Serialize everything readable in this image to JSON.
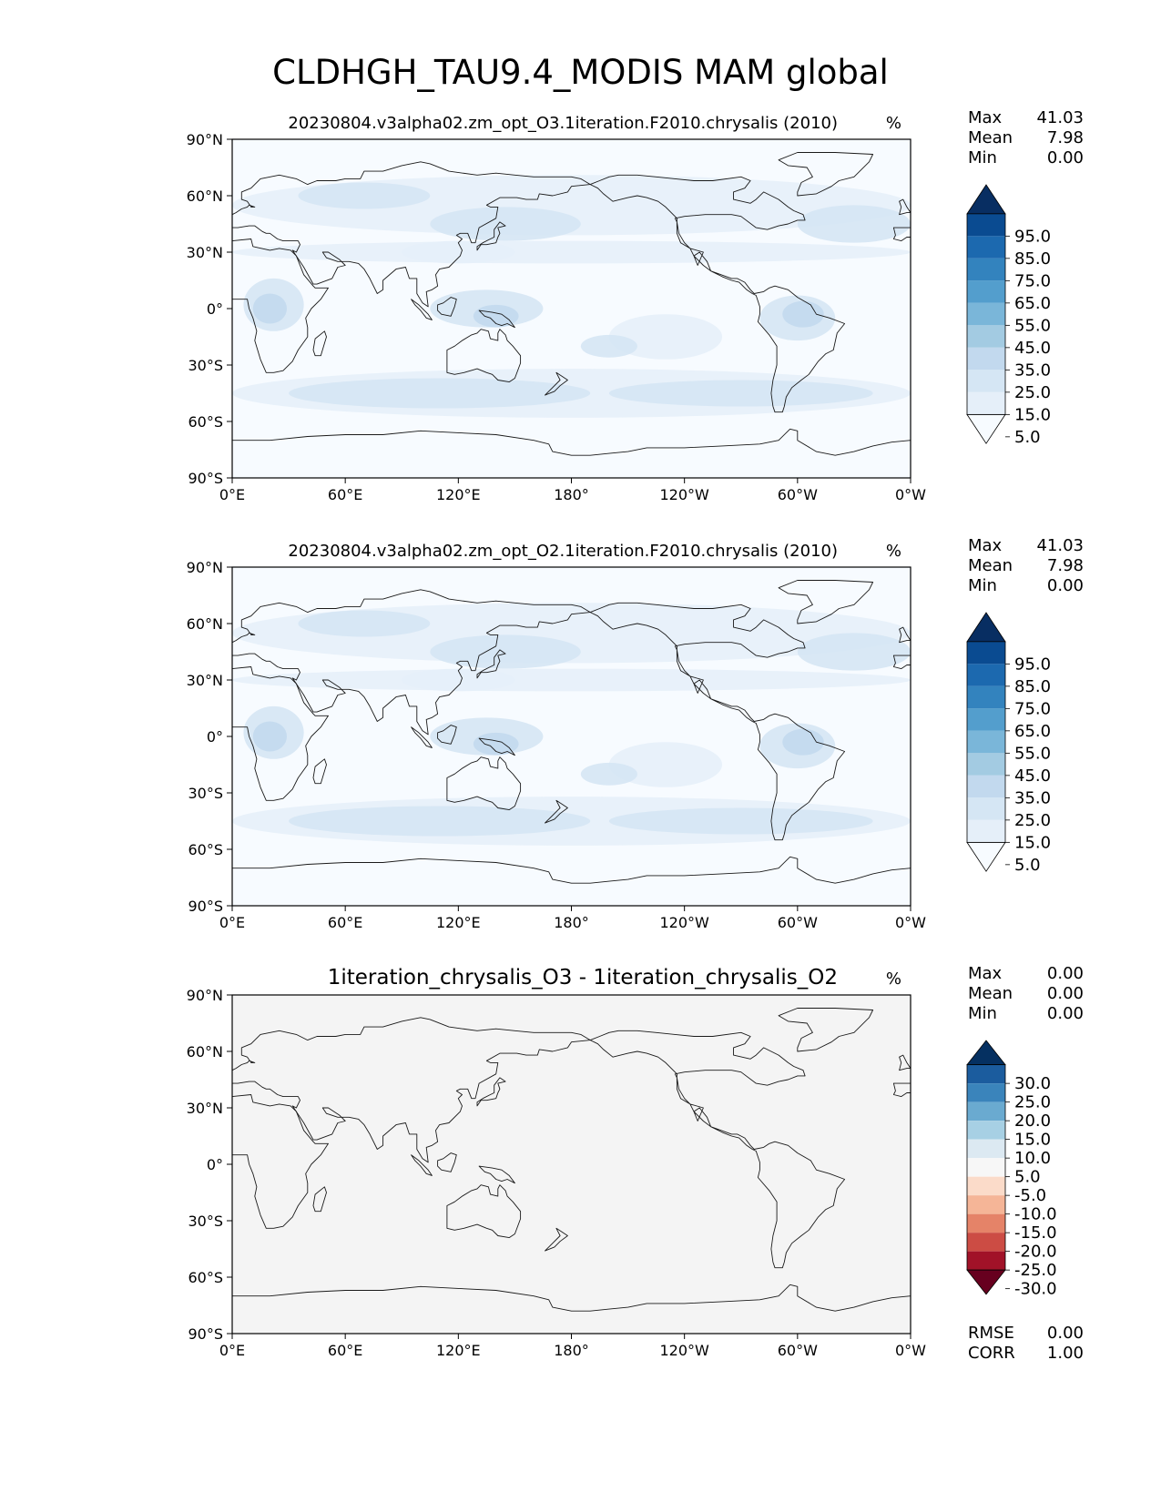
{
  "figure": {
    "title": "CLDHGH_TAU9.4_MODIS MAM global"
  },
  "colors": {
    "land_outline": "#1a1a1a",
    "diff_background": "#f4f4f4",
    "blues": [
      "#f7fbff",
      "#e5eff9",
      "#d5e6f4",
      "#c2d9ee",
      "#a3cbe2",
      "#7ab6d9",
      "#539ecd",
      "#3383be",
      "#1c69af",
      "#0a4b91",
      "#082e62"
    ],
    "rdbu": [
      "#67001f",
      "#a11228",
      "#cc4c44",
      "#e58368",
      "#f5b597",
      "#fbdbc9",
      "#f7f7f7",
      "#dce9f2",
      "#a7d0e4",
      "#6aaad0",
      "#3a84bb",
      "#1b5c9e",
      "#053061"
    ]
  },
  "chart_data": [
    {
      "type": "heatmap",
      "title": "20230804.v3alpha02.zm_opt_O3.1iteration.F2010.chrysalis (2010)",
      "units": "%",
      "stats": [
        {
          "label": "Max",
          "value": "41.03"
        },
        {
          "label": "Mean",
          "value": "7.98"
        },
        {
          "label": "Min",
          "value": "0.00"
        }
      ],
      "x_ticks": [
        "0°E",
        "60°E",
        "120°E",
        "180°",
        "120°W",
        "60°W",
        "0°W"
      ],
      "y_ticks": [
        "90°N",
        "60°N",
        "30°N",
        "0°",
        "30°S",
        "60°S",
        "90°S"
      ],
      "xlim": [
        0,
        360
      ],
      "ylim": [
        -90,
        90
      ],
      "colorbar": {
        "levels": [
          0,
          5,
          15,
          25,
          35,
          45,
          55,
          65,
          75,
          85,
          95,
          100
        ],
        "tick_labels": [
          "95.0",
          "85.0",
          "75.0",
          "65.0",
          "55.0",
          "45.0",
          "35.0",
          "25.0",
          "15.0",
          "5.0"
        ],
        "extend": "both",
        "colormap": "Blues"
      }
    },
    {
      "type": "heatmap",
      "title": "20230804.v3alpha02.zm_opt_O2.1iteration.F2010.chrysalis (2010)",
      "units": "%",
      "stats": [
        {
          "label": "Max",
          "value": "41.03"
        },
        {
          "label": "Mean",
          "value": "7.98"
        },
        {
          "label": "Min",
          "value": "0.00"
        }
      ],
      "x_ticks": [
        "0°E",
        "60°E",
        "120°E",
        "180°",
        "120°W",
        "60°W",
        "0°W"
      ],
      "y_ticks": [
        "90°N",
        "60°N",
        "30°N",
        "0°",
        "30°S",
        "60°S",
        "90°S"
      ],
      "xlim": [
        0,
        360
      ],
      "ylim": [
        -90,
        90
      ],
      "colorbar": {
        "levels": [
          0,
          5,
          15,
          25,
          35,
          45,
          55,
          65,
          75,
          85,
          95,
          100
        ],
        "tick_labels": [
          "95.0",
          "85.0",
          "75.0",
          "65.0",
          "55.0",
          "45.0",
          "35.0",
          "25.0",
          "15.0",
          "5.0"
        ],
        "extend": "both",
        "colormap": "Blues"
      }
    },
    {
      "type": "heatmap",
      "title": "1iteration_chrysalis_O3 - 1iteration_chrysalis_O2",
      "units": "%",
      "stats": [
        {
          "label": "Max",
          "value": "0.00"
        },
        {
          "label": "Mean",
          "value": "0.00"
        },
        {
          "label": "Min",
          "value": "0.00"
        }
      ],
      "bottom_stats": [
        {
          "label": "RMSE",
          "value": "0.00"
        },
        {
          "label": "CORR",
          "value": "1.00"
        }
      ],
      "x_ticks": [
        "0°E",
        "60°E",
        "120°E",
        "180°",
        "120°W",
        "60°W",
        "0°W"
      ],
      "y_ticks": [
        "90°N",
        "60°N",
        "30°N",
        "0°",
        "30°S",
        "60°S",
        "90°S"
      ],
      "xlim": [
        0,
        360
      ],
      "ylim": [
        -90,
        90
      ],
      "colorbar": {
        "levels": [
          -35,
          -30,
          -25,
          -20,
          -15,
          -10,
          -5,
          5,
          10,
          15,
          20,
          25,
          30,
          35
        ],
        "tick_labels": [
          "30.0",
          "25.0",
          "20.0",
          "15.0",
          "10.0",
          "5.0",
          "-5.0",
          "-10.0",
          "-15.0",
          "-20.0",
          "-25.0",
          "-30.0"
        ],
        "extend": "both",
        "colormap": "RdBu_r"
      }
    }
  ]
}
